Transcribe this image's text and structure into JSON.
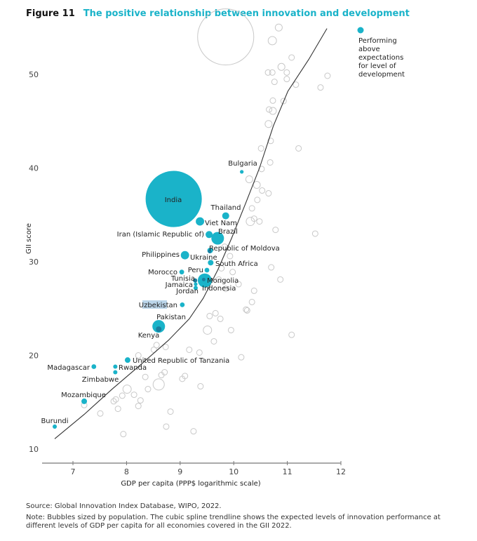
{
  "figure_number": "Figure 11",
  "title": "The positive relationship between innovation and development",
  "legend": {
    "label": "Performing above expectations for level of development"
  },
  "source": "Source: Global Innovation Index Database, WIPO, 2022.",
  "note": "Note: Bubbles sized by population. The cubic spline trendline shows the expected levels of innovation performance at different levels of GDP per capita for all economies covered in the GII 2022.",
  "colors": {
    "highlight": "#1ab3c9",
    "highlight_dark": "#1a7fa0",
    "other": "#c8c8c8",
    "trend": "#333333"
  },
  "chart_data": {
    "type": "scatter",
    "title": "The positive relationship between innovation and development",
    "xlabel": "GDP per capita (PPP$ logarithmic scale)",
    "ylabel": "GII score",
    "xlim": [
      6.4,
      12
    ],
    "ylim": [
      9,
      57
    ],
    "xticks": [
      7,
      8,
      9,
      10,
      11,
      12
    ],
    "yticks": [
      10,
      20,
      30,
      40,
      50
    ],
    "grid": false,
    "legend_position": "top-right",
    "highlighted": [
      {
        "name": "India",
        "x": 8.88,
        "y": 36.7,
        "pop_m": 1400
      },
      {
        "name": "Bulgaria",
        "x": 10.15,
        "y": 39.6,
        "pop_m": 6
      },
      {
        "name": "Thailand",
        "x": 9.85,
        "y": 34.9,
        "pop_m": 22
      },
      {
        "name": "Viet Nam",
        "x": 9.37,
        "y": 34.3,
        "pop_m": 31
      },
      {
        "name": "Iran (Islamic Republic of)",
        "x": 9.54,
        "y": 32.9,
        "pop_m": 22
      },
      {
        "name": "Brazil",
        "x": 9.7,
        "y": 32.5,
        "pop_m": 71
      },
      {
        "name": "Ukraine",
        "x": 9.56,
        "y": 31.2,
        "pop_m": 14
      },
      {
        "name": "Republic of Moldova",
        "x": 9.55,
        "y": 31.1,
        "pop_m": 6,
        "dark": true
      },
      {
        "name": "Philippines",
        "x": 9.09,
        "y": 30.7,
        "pop_m": 31
      },
      {
        "name": "South Africa",
        "x": 9.57,
        "y": 29.9,
        "pop_m": 14
      },
      {
        "name": "Peru",
        "x": 9.5,
        "y": 29.1,
        "pop_m": 10
      },
      {
        "name": "Morocco",
        "x": 9.03,
        "y": 28.9,
        "pop_m": 10
      },
      {
        "name": "Indonesia",
        "x": 9.46,
        "y": 28.0,
        "pop_m": 87
      },
      {
        "name": "Mongolia",
        "x": 9.44,
        "y": 28.1,
        "pop_m": 3,
        "dark": true
      },
      {
        "name": "Tunisia",
        "x": 9.28,
        "y": 28.0,
        "pop_m": 8,
        "dark": true
      },
      {
        "name": "Jamaica",
        "x": 9.29,
        "y": 27.6,
        "pop_m": 6
      },
      {
        "name": "Jordan",
        "x": 9.29,
        "y": 27.2,
        "pop_m": 8
      },
      {
        "name": "Uzbekistan",
        "x": 9.04,
        "y": 25.4,
        "pop_m": 10
      },
      {
        "name": "Pakistan",
        "x": 8.6,
        "y": 23.1,
        "pop_m": 71
      },
      {
        "name": "Kenya",
        "x": 8.6,
        "y": 22.8,
        "pop_m": 14,
        "dark": true
      },
      {
        "name": "United Republic of Tanzania",
        "x": 8.02,
        "y": 19.5,
        "pop_m": 14
      },
      {
        "name": "Madagascar",
        "x": 7.39,
        "y": 18.8,
        "pop_m": 10
      },
      {
        "name": "Rwanda",
        "x": 7.79,
        "y": 18.8,
        "pop_m": 8
      },
      {
        "name": "Zimbabwe",
        "x": 7.79,
        "y": 18.2,
        "pop_m": 8
      },
      {
        "name": "Mozambique",
        "x": 7.21,
        "y": 15.1,
        "pop_m": 14
      },
      {
        "name": "Burundi",
        "x": 6.66,
        "y": 12.4,
        "pop_m": 8
      }
    ],
    "others": [
      [
        10.84,
        55.0,
        22
      ],
      [
        10.72,
        53.6,
        31
      ],
      [
        9.85,
        54.0,
        1400
      ],
      [
        11.08,
        51.8,
        14
      ],
      [
        10.89,
        50.8,
        22
      ],
      [
        10.64,
        50.2,
        14
      ],
      [
        10.72,
        50.2,
        14
      ],
      [
        10.99,
        50.2,
        14
      ],
      [
        10.76,
        49.2,
        14
      ],
      [
        10.99,
        49.5,
        14
      ],
      [
        11.16,
        48.9,
        14
      ],
      [
        11.75,
        49.85,
        14
      ],
      [
        11.62,
        48.6,
        14
      ],
      [
        10.73,
        47.2,
        14
      ],
      [
        10.93,
        47.15,
        14
      ],
      [
        10.66,
        46.25,
        14
      ],
      [
        10.73,
        46.1,
        22
      ],
      [
        10.65,
        44.7,
        22
      ],
      [
        10.69,
        42.9,
        14
      ],
      [
        10.51,
        42.1,
        14
      ],
      [
        11.21,
        42.1,
        14
      ],
      [
        10.68,
        40.6,
        14
      ],
      [
        10.52,
        39.9,
        14
      ],
      [
        10.29,
        38.8,
        22
      ],
      [
        10.43,
        38.2,
        22
      ],
      [
        10.53,
        37.6,
        14
      ],
      [
        10.65,
        37.3,
        14
      ],
      [
        10.44,
        36.6,
        14
      ],
      [
        10.34,
        35.7,
        14
      ],
      [
        10.38,
        34.6,
        14
      ],
      [
        10.31,
        34.3,
        31
      ],
      [
        10.48,
        34.3,
        14
      ],
      [
        11.52,
        33.0,
        14
      ],
      [
        10.78,
        33.4,
        14
      ],
      [
        10.7,
        29.4,
        14
      ],
      [
        10.87,
        28.1,
        14
      ],
      [
        10.38,
        26.9,
        14
      ],
      [
        10.23,
        24.9,
        14
      ],
      [
        9.83,
        31.6,
        14
      ],
      [
        9.93,
        30.6,
        14
      ],
      [
        9.77,
        29.3,
        14
      ],
      [
        9.98,
        28.9,
        14
      ],
      [
        9.72,
        28.1,
        14
      ],
      [
        10.09,
        27.6,
        14
      ],
      [
        9.85,
        27.1,
        14
      ],
      [
        10.34,
        25.7,
        14
      ],
      [
        10.25,
        24.8,
        14
      ],
      [
        9.55,
        24.2,
        14
      ],
      [
        9.66,
        24.5,
        14
      ],
      [
        9.75,
        23.9,
        14
      ],
      [
        9.51,
        22.7,
        31
      ],
      [
        9.95,
        22.7,
        14
      ],
      [
        9.63,
        21.5,
        14
      ],
      [
        11.08,
        22.2,
        14
      ],
      [
        8.56,
        21.1,
        14
      ],
      [
        8.51,
        20.6,
        14
      ],
      [
        8.73,
        20.9,
        14
      ],
      [
        9.17,
        20.6,
        14
      ],
      [
        9.36,
        20.3,
        14
      ],
      [
        10.14,
        19.8,
        14
      ],
      [
        8.22,
        20.0,
        14
      ],
      [
        8.35,
        17.7,
        14
      ],
      [
        8.65,
        17.9,
        14
      ],
      [
        8.71,
        18.2,
        14
      ],
      [
        8.6,
        16.9,
        56
      ],
      [
        9.09,
        17.8,
        14
      ],
      [
        9.04,
        17.5,
        14
      ],
      [
        9.38,
        16.7,
        14
      ],
      [
        8.01,
        16.4,
        31
      ],
      [
        8.4,
        16.4,
        14
      ],
      [
        8.14,
        15.8,
        14
      ],
      [
        7.92,
        15.7,
        14
      ],
      [
        8.26,
        15.2,
        14
      ],
      [
        8.22,
        14.6,
        14
      ],
      [
        7.76,
        15.1,
        14
      ],
      [
        7.8,
        15.3,
        14
      ],
      [
        7.84,
        14.3,
        14
      ],
      [
        7.51,
        13.8,
        14
      ],
      [
        8.82,
        14.0,
        14
      ],
      [
        8.74,
        12.4,
        14
      ],
      [
        9.25,
        11.9,
        14
      ],
      [
        7.94,
        11.6,
        14
      ],
      [
        7.21,
        14.7,
        14
      ]
    ],
    "trendline": [
      [
        6.66,
        11.1
      ],
      [
        7.21,
        13.7
      ],
      [
        7.73,
        16.4
      ],
      [
        8.26,
        19.0
      ],
      [
        8.78,
        21.6
      ],
      [
        9.17,
        23.9
      ],
      [
        9.43,
        26.1
      ],
      [
        9.7,
        29.1
      ],
      [
        9.96,
        32.5
      ],
      [
        10.22,
        36.2
      ],
      [
        10.48,
        40.0
      ],
      [
        10.74,
        44.5
      ],
      [
        11.01,
        48.2
      ],
      [
        11.4,
        51.6
      ],
      [
        11.74,
        54.9
      ]
    ]
  }
}
